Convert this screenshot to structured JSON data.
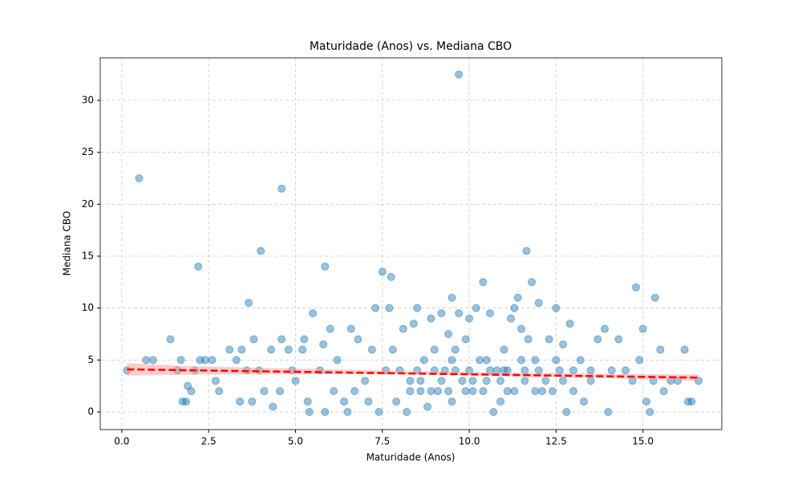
{
  "chart_data": {
    "type": "scatter",
    "title": "Maturidade (Anos) vs. Mediana CBO",
    "x_label": "Maturidade (Anos)",
    "y_label": "Mediana CBO",
    "x": [
      0.5,
      4.6,
      9.7,
      2.2,
      4.0,
      5.85,
      7.5,
      7.75,
      3.65,
      11.65,
      10.4,
      11.8,
      14.8,
      15.35,
      9.5,
      0.15,
      0.7,
      0.9,
      1.4,
      1.6,
      1.7,
      1.75,
      1.85,
      1.9,
      2.0,
      2.1,
      2.25,
      2.4,
      2.6,
      2.7,
      2.8,
      3.1,
      3.3,
      3.4,
      3.45,
      3.6,
      3.75,
      3.8,
      3.95,
      4.1,
      4.3,
      4.35,
      4.55,
      4.6,
      4.8,
      4.9,
      5.0,
      5.2,
      5.25,
      5.35,
      5.4,
      5.5,
      5.7,
      5.8,
      5.85,
      6.0,
      6.1,
      6.2,
      6.4,
      6.5,
      6.6,
      6.7,
      6.8,
      7.0,
      7.1,
      7.2,
      7.3,
      7.4,
      7.6,
      7.7,
      7.8,
      7.9,
      8.1,
      8.2,
      8.3,
      8.4,
      8.5,
      8.6,
      8.7,
      8.8,
      8.9,
      9.0,
      9.1,
      9.2,
      9.3,
      9.4,
      9.5,
      9.6,
      9.7,
      9.8,
      9.9,
      10.0,
      10.1,
      10.2,
      10.3,
      10.5,
      10.6,
      10.7,
      10.8,
      10.9,
      11.0,
      11.1,
      11.2,
      11.3,
      11.4,
      11.5,
      11.6,
      11.7,
      11.9,
      12.0,
      12.1,
      12.3,
      12.5,
      12.6,
      12.7,
      12.8,
      12.9,
      13.0,
      13.2,
      13.3,
      13.5,
      13.7,
      13.9,
      14.0,
      14.1,
      14.3,
      14.5,
      14.7,
      14.9,
      15.0,
      15.1,
      15.2,
      15.3,
      15.5,
      15.6,
      15.8,
      16.0,
      16.2,
      16.3,
      16.4,
      16.6,
      8.3,
      8.6,
      8.9,
      9.2,
      9.4,
      9.6,
      9.9,
      10.1,
      10.4,
      10.6,
      10.9,
      11.1,
      11.3,
      11.6,
      11.9,
      12.2,
      12.4,
      12.7,
      8.0,
      8.5,
      9.0,
      9.5,
      10.0,
      10.5,
      11.0,
      11.5,
      12.0,
      12.5,
      13.0,
      13.5
    ],
    "values": [
      22.5,
      21.5,
      32.5,
      14,
      15.5,
      14,
      13.5,
      13,
      10.5,
      15.5,
      12.5,
      12.5,
      12,
      11,
      11,
      4,
      5,
      5,
      7,
      4,
      5,
      1,
      1,
      2.5,
      2,
      4,
      5,
      5,
      5,
      3,
      2,
      6,
      5,
      1,
      6,
      4,
      1,
      7,
      4,
      2,
      6,
      0.5,
      2,
      7,
      6,
      4,
      3,
      6,
      7,
      1,
      0,
      9.5,
      4,
      6.5,
      0,
      8,
      2,
      5,
      1,
      0,
      8,
      2,
      7,
      3,
      1,
      6,
      10,
      0,
      4,
      10,
      6,
      1,
      8,
      0,
      3,
      8.5,
      10,
      2,
      5,
      0.5,
      9,
      6,
      2,
      9.5,
      4,
      7.5,
      1,
      6,
      9.5,
      3,
      7,
      9,
      2,
      10,
      5,
      3,
      9.5,
      0,
      4,
      1,
      6,
      2,
      9,
      10,
      11,
      8,
      3,
      7,
      5,
      10.5,
      2,
      7,
      10,
      4,
      6.5,
      0,
      8.5,
      2,
      5,
      1,
      3,
      7,
      8,
      0,
      4,
      7,
      4,
      3,
      5,
      8,
      1,
      0,
      3,
      6,
      2,
      3,
      3,
      6,
      1,
      1,
      3,
      2,
      3,
      2,
      3,
      2,
      4,
      2,
      3,
      2,
      4,
      3,
      4,
      2,
      4,
      2,
      3,
      2,
      3,
      4,
      4,
      4,
      5,
      4,
      5,
      4,
      5,
      4,
      5,
      4,
      4
    ],
    "color": "#1f77b4",
    "regression": {
      "x": [
        0.15,
        16.6
      ],
      "y": [
        4.1,
        3.3
      ],
      "color": "#ff0000"
    },
    "band": {
      "x": [
        0.15,
        2,
        8,
        14,
        16.6
      ],
      "upper": [
        4.7,
        4.4,
        3.95,
        3.65,
        3.6
      ],
      "lower": [
        3.5,
        3.6,
        3.65,
        3.25,
        3.0
      ],
      "color": "#ff9999"
    },
    "xlim": [
      -0.62,
      17.27
    ],
    "ylim": [
      -1.7,
      34.1
    ],
    "xticks": [
      {
        "value": 0,
        "label": "0.0"
      },
      2.5,
      {
        "value": 5,
        "label": "5.0"
      },
      7.5,
      {
        "value": 10,
        "label": "10.0"
      },
      12.5,
      {
        "value": 15,
        "label": "15.0"
      }
    ],
    "yticks": [
      0,
      5,
      10,
      15,
      20,
      25,
      30
    ],
    "grid": true
  }
}
